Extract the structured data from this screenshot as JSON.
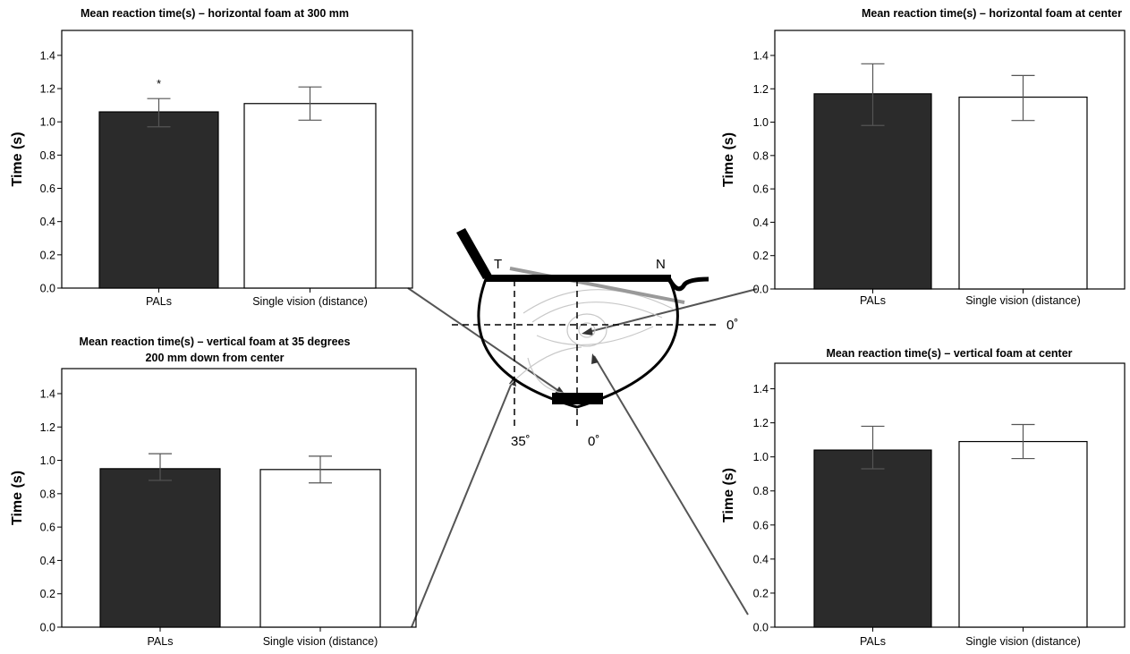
{
  "chart_data": [
    {
      "type": "bar",
      "title": [
        "Mean reaction time(s) – horizontal foam at 300 mm"
      ],
      "ylabel": "Time (s)",
      "categories": [
        "PALs",
        "Single vision (distance)"
      ],
      "values": [
        1.06,
        1.11
      ],
      "error_low": [
        0.97,
        1.01
      ],
      "error_high": [
        1.14,
        1.21
      ],
      "annotations": [
        "*",
        ""
      ],
      "colors": [
        "#2b2b2b",
        "#ffffff"
      ],
      "ylim": [
        0,
        1.55
      ],
      "yticks": [
        "0.0",
        "0.2",
        "0.4",
        "0.6",
        "0.8",
        "1.0",
        "1.2",
        "1.4"
      ]
    },
    {
      "type": "bar",
      "title": [
        "Mean reaction time(s) – horizontal foam at center"
      ],
      "ylabel": "Time (s)",
      "categories": [
        "PALs",
        "Single vision (distance)"
      ],
      "values": [
        1.17,
        1.15
      ],
      "error_low": [
        0.98,
        1.01
      ],
      "error_high": [
        1.35,
        1.28
      ],
      "annotations": [
        "",
        ""
      ],
      "colors": [
        "#2b2b2b",
        "#ffffff"
      ],
      "ylim": [
        0,
        1.55
      ],
      "yticks": [
        "0.0",
        "0.2",
        "0.4",
        "0.6",
        "0.8",
        "1.0",
        "1.2",
        "1.4"
      ]
    },
    {
      "type": "bar",
      "title": [
        "Mean reaction time(s) – vertical foam at 35 degrees",
        "200 mm down from center"
      ],
      "ylabel": "Time (s)",
      "categories": [
        "PALs",
        "Single vision (distance)"
      ],
      "values": [
        0.95,
        0.945
      ],
      "error_low": [
        0.88,
        0.865
      ],
      "error_high": [
        1.04,
        1.025
      ],
      "annotations": [
        "",
        ""
      ],
      "colors": [
        "#2b2b2b",
        "#ffffff"
      ],
      "ylim": [
        0,
        1.55
      ],
      "yticks": [
        "0.0",
        "0.2",
        "0.4",
        "0.6",
        "0.8",
        "1.0",
        "1.2",
        "1.4"
      ]
    },
    {
      "type": "bar",
      "title": [
        "Mean reaction time(s) – vertical foam at center"
      ],
      "ylabel": "Time (s)",
      "categories": [
        "PALs",
        "Single vision (distance)"
      ],
      "values": [
        1.04,
        1.09
      ],
      "error_low": [
        0.93,
        0.99
      ],
      "error_high": [
        1.18,
        1.19
      ],
      "annotations": [
        "",
        ""
      ],
      "colors": [
        "#2b2b2b",
        "#ffffff"
      ],
      "ylim": [
        0,
        1.55
      ],
      "yticks": [
        "0.0",
        "0.2",
        "0.4",
        "0.6",
        "0.8",
        "1.0",
        "1.2",
        "1.4"
      ]
    }
  ],
  "diagram": {
    "label_t": "T",
    "label_n": "N",
    "angle_0_right": "0˚",
    "angle_35_bottom": "35˚",
    "angle_0_bottom": "0˚",
    "accent_color": "#000000"
  }
}
